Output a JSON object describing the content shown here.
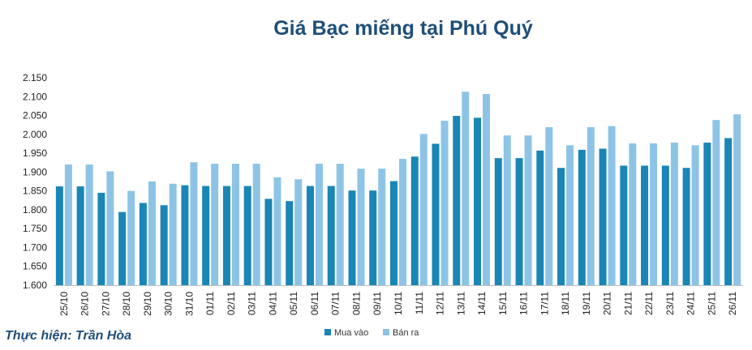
{
  "credit": "Thực hiện: Trần Hòa",
  "colors": {
    "buy": "#1a86b5",
    "sell": "#8dc4e6",
    "title": "#1f4e79"
  },
  "chart_data": {
    "type": "bar",
    "title": "Giá Bạc miếng tại Phú Quý",
    "xlabel": "",
    "ylabel": "",
    "ylim": [
      1600,
      2150
    ],
    "yticks": [
      "1.600",
      "1.650",
      "1.700",
      "1.750",
      "1.800",
      "1.850",
      "1.900",
      "1.950",
      "2.000",
      "2.050",
      "2.100",
      "2.150"
    ],
    "grid": false,
    "legend": "bottom",
    "categories": [
      "25/10",
      "26/10",
      "27/10",
      "28/10",
      "29/10",
      "30/10",
      "31/10",
      "01/11",
      "02/11",
      "03/11",
      "04/11",
      "05/11",
      "06/11",
      "07/11",
      "08/11",
      "09/11",
      "10/11",
      "11/11",
      "12/11",
      "13/11",
      "14/11",
      "15/11",
      "16/11",
      "17/11",
      "18/11",
      "19/11",
      "20/11",
      "21/11",
      "22/11",
      "23/11",
      "24/11",
      "25/11",
      "26/11"
    ],
    "series": [
      {
        "name": "Mua vào",
        "values": [
          1862,
          1862,
          1845,
          1794,
          1818,
          1812,
          1865,
          1863,
          1863,
          1863,
          1829,
          1823,
          1863,
          1863,
          1851,
          1851,
          1876,
          1941,
          1975,
          2049,
          2044,
          1937,
          1937,
          1957,
          1911,
          1959,
          1962,
          1917,
          1917,
          1917,
          1911,
          1978,
          1990
        ]
      },
      {
        "name": "Bán ra",
        "values": [
          1920,
          1920,
          1902,
          1850,
          1875,
          1869,
          1926,
          1922,
          1922,
          1922,
          1886,
          1881,
          1922,
          1922,
          1909,
          1909,
          1935,
          2001,
          2036,
          2113,
          2107,
          1997,
          1997,
          2019,
          1971,
          2019,
          2022,
          1976,
          1976,
          1978,
          1971,
          2038,
          2053
        ]
      }
    ]
  }
}
